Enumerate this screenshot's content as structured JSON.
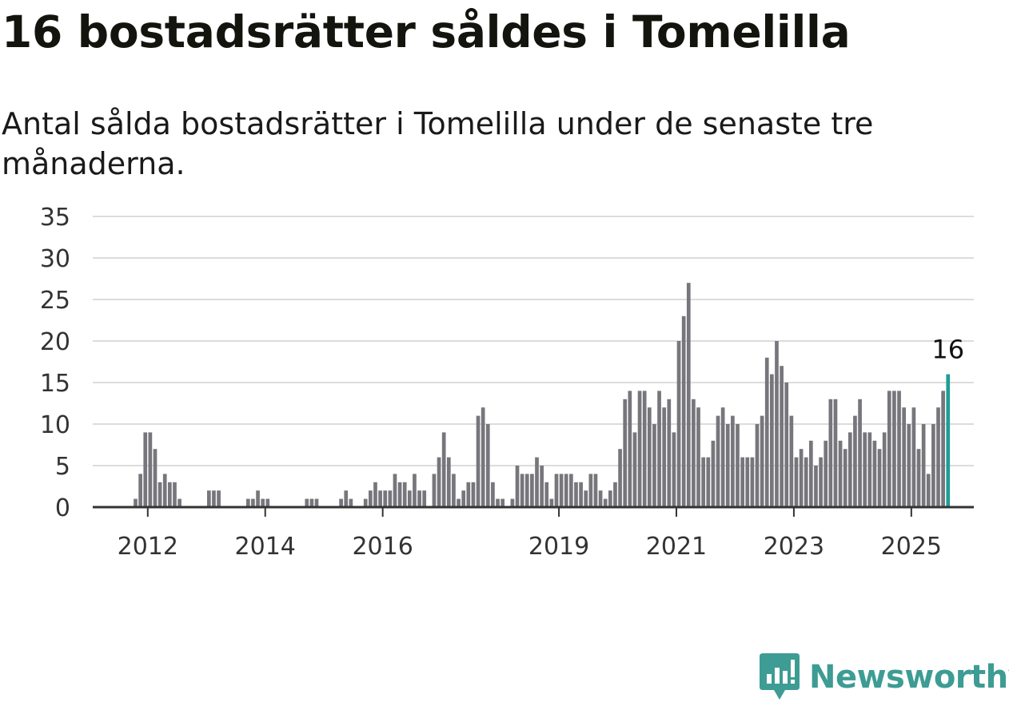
{
  "title": "16 bostadsrätter såldes i Tomelilla",
  "subtitle": "Antal sålda bostadsrätter i Tomelilla under de senaste tre månaderna.",
  "brand": "Newsworthy",
  "colors": {
    "bar": "#77767c",
    "highlight": "#1f9e95",
    "grid": "#dcdcdc",
    "axis": "#333333",
    "brand": "#3d9c94"
  },
  "chart_data": {
    "type": "bar",
    "title": "16 bostadsrätter såldes i Tomelilla",
    "subtitle": "Antal sålda bostadsrätter i Tomelilla under de senaste tre månaderna.",
    "xlabel": "",
    "ylabel": "",
    "ylim": [
      0,
      35
    ],
    "yticks": [
      0,
      5,
      10,
      15,
      20,
      25,
      30,
      35
    ],
    "xticks": [
      "2012",
      "2014",
      "2016",
      "2019",
      "2021",
      "2023",
      "2025"
    ],
    "grid": true,
    "start": "2011-10",
    "frequency": "monthly",
    "values": [
      1,
      4,
      9,
      9,
      7,
      3,
      4,
      3,
      3,
      1,
      0,
      0,
      0,
      0,
      0,
      2,
      2,
      2,
      0,
      0,
      0,
      0,
      0,
      1,
      1,
      2,
      1,
      1,
      0,
      0,
      0,
      0,
      0,
      0,
      0,
      1,
      1,
      1,
      0,
      0,
      0,
      0,
      1,
      2,
      1,
      0,
      0,
      1,
      2,
      3,
      2,
      2,
      2,
      4,
      3,
      3,
      2,
      4,
      2,
      2,
      0,
      4,
      6,
      9,
      6,
      4,
      1,
      2,
      3,
      3,
      11,
      12,
      10,
      3,
      1,
      1,
      0,
      1,
      5,
      4,
      4,
      4,
      6,
      5,
      3,
      1,
      4,
      4,
      4,
      4,
      3,
      3,
      2,
      4,
      4,
      2,
      1,
      2,
      3,
      7,
      13,
      14,
      9,
      14,
      14,
      12,
      10,
      14,
      12,
      13,
      9,
      20,
      23,
      27,
      13,
      12,
      6,
      6,
      8,
      11,
      12,
      10,
      11,
      10,
      6,
      6,
      6,
      10,
      11,
      18,
      16,
      20,
      17,
      15,
      11,
      6,
      7,
      6,
      8,
      5,
      6,
      8,
      13,
      13,
      8,
      7,
      9,
      11,
      13,
      9,
      9,
      8,
      7,
      9,
      14,
      14,
      14,
      12,
      10,
      12,
      7,
      10,
      4,
      10,
      12,
      14,
      16
    ],
    "highlight_last": true,
    "last_value_label": "16"
  }
}
